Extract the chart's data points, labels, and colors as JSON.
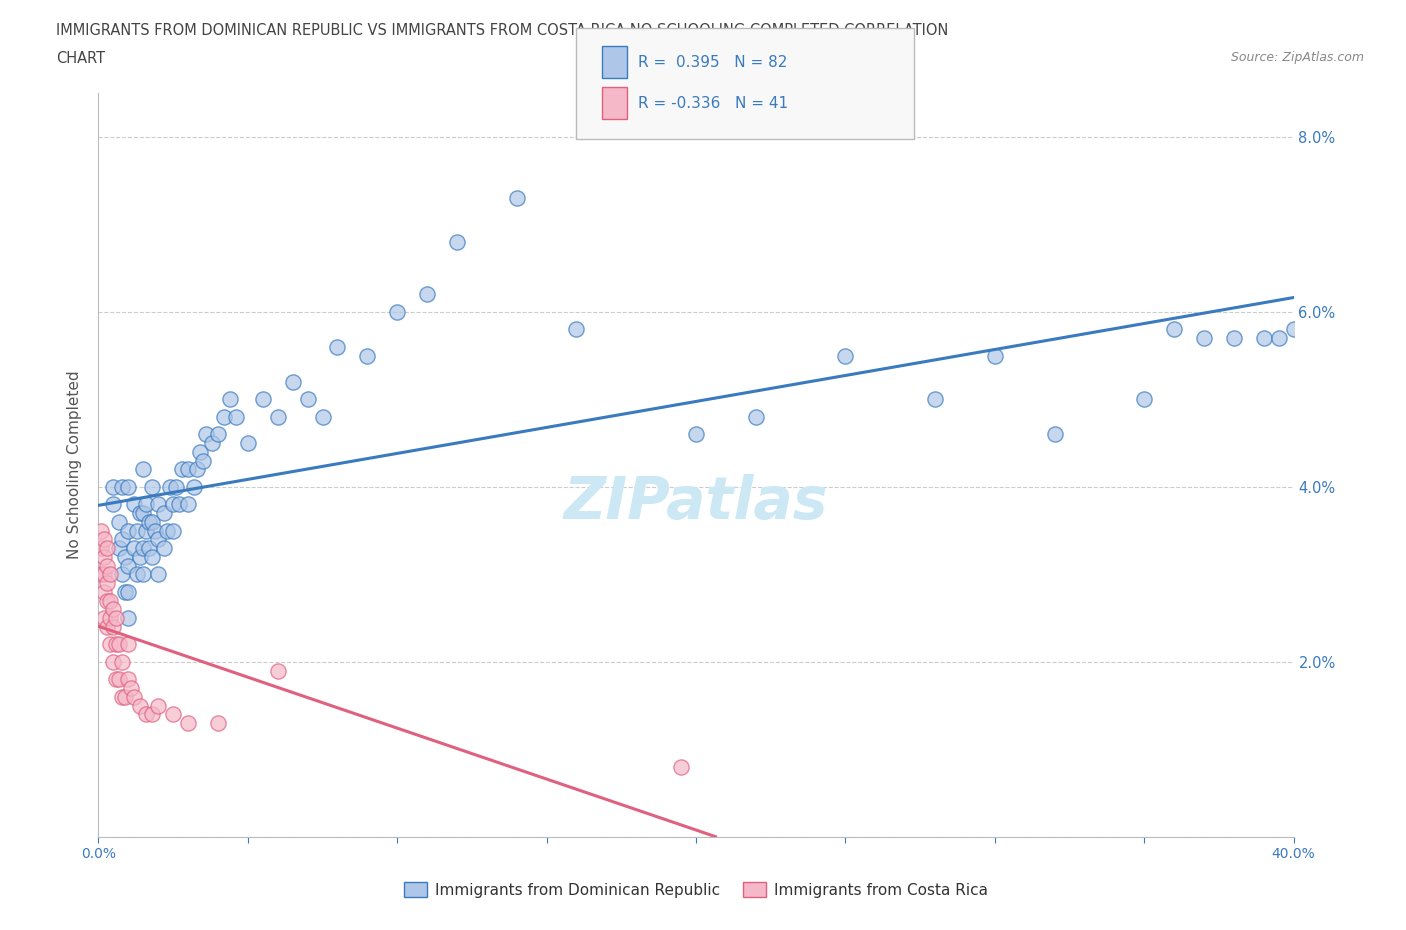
{
  "title_line1": "IMMIGRANTS FROM DOMINICAN REPUBLIC VS IMMIGRANTS FROM COSTA RICA NO SCHOOLING COMPLETED CORRELATION",
  "title_line2": "CHART",
  "source": "Source: ZipAtlas.com",
  "ylabel": "No Schooling Completed",
  "xlabel_dr": "Immigrants from Dominican Republic",
  "xlabel_cr": "Immigrants from Costa Rica",
  "R_dr": 0.395,
  "N_dr": 82,
  "R_cr": -0.336,
  "N_cr": 41,
  "color_dr": "#aec6e8",
  "color_cr": "#f5b8c8",
  "line_color_dr": "#3a7abf",
  "line_color_cr": "#e06080",
  "xmin": 0.0,
  "xmax": 0.4,
  "ymin": 0.0,
  "ymax": 0.085,
  "yticks": [
    0.0,
    0.02,
    0.04,
    0.06,
    0.08
  ],
  "xticks": [
    0.0,
    0.05,
    0.1,
    0.15,
    0.2,
    0.25,
    0.3,
    0.35,
    0.4
  ],
  "dr_x": [
    0.005,
    0.005,
    0.007,
    0.007,
    0.008,
    0.008,
    0.008,
    0.009,
    0.009,
    0.01,
    0.01,
    0.01,
    0.01,
    0.01,
    0.012,
    0.012,
    0.013,
    0.013,
    0.014,
    0.014,
    0.015,
    0.015,
    0.015,
    0.015,
    0.016,
    0.016,
    0.017,
    0.017,
    0.018,
    0.018,
    0.018,
    0.019,
    0.02,
    0.02,
    0.02,
    0.022,
    0.022,
    0.023,
    0.024,
    0.025,
    0.025,
    0.026,
    0.027,
    0.028,
    0.03,
    0.03,
    0.032,
    0.033,
    0.034,
    0.035,
    0.036,
    0.038,
    0.04,
    0.042,
    0.044,
    0.046,
    0.05,
    0.055,
    0.06,
    0.065,
    0.07,
    0.075,
    0.08,
    0.09,
    0.1,
    0.11,
    0.12,
    0.14,
    0.16,
    0.2,
    0.22,
    0.25,
    0.28,
    0.3,
    0.32,
    0.35,
    0.36,
    0.37,
    0.38,
    0.39,
    0.395,
    0.4
  ],
  "dr_y": [
    0.038,
    0.04,
    0.033,
    0.036,
    0.03,
    0.034,
    0.04,
    0.028,
    0.032,
    0.025,
    0.028,
    0.031,
    0.035,
    0.04,
    0.033,
    0.038,
    0.03,
    0.035,
    0.032,
    0.037,
    0.03,
    0.033,
    0.037,
    0.042,
    0.035,
    0.038,
    0.033,
    0.036,
    0.032,
    0.036,
    0.04,
    0.035,
    0.03,
    0.034,
    0.038,
    0.033,
    0.037,
    0.035,
    0.04,
    0.035,
    0.038,
    0.04,
    0.038,
    0.042,
    0.038,
    0.042,
    0.04,
    0.042,
    0.044,
    0.043,
    0.046,
    0.045,
    0.046,
    0.048,
    0.05,
    0.048,
    0.045,
    0.05,
    0.048,
    0.052,
    0.05,
    0.048,
    0.056,
    0.055,
    0.06,
    0.062,
    0.068,
    0.073,
    0.058,
    0.046,
    0.048,
    0.055,
    0.05,
    0.055,
    0.046,
    0.05,
    0.058,
    0.057,
    0.057,
    0.057,
    0.057,
    0.058
  ],
  "cr_x": [
    0.001,
    0.001,
    0.001,
    0.002,
    0.002,
    0.002,
    0.002,
    0.002,
    0.003,
    0.003,
    0.003,
    0.003,
    0.003,
    0.004,
    0.004,
    0.004,
    0.004,
    0.005,
    0.005,
    0.005,
    0.006,
    0.006,
    0.006,
    0.007,
    0.007,
    0.008,
    0.008,
    0.009,
    0.01,
    0.01,
    0.011,
    0.012,
    0.014,
    0.016,
    0.018,
    0.02,
    0.025,
    0.03,
    0.04,
    0.06,
    0.195
  ],
  "cr_y": [
    0.03,
    0.033,
    0.035,
    0.025,
    0.028,
    0.03,
    0.032,
    0.034,
    0.024,
    0.027,
    0.029,
    0.031,
    0.033,
    0.022,
    0.025,
    0.027,
    0.03,
    0.02,
    0.024,
    0.026,
    0.018,
    0.022,
    0.025,
    0.018,
    0.022,
    0.016,
    0.02,
    0.016,
    0.018,
    0.022,
    0.017,
    0.016,
    0.015,
    0.014,
    0.014,
    0.015,
    0.014,
    0.013,
    0.013,
    0.019,
    0.008
  ],
  "background_color": "#ffffff",
  "grid_color": "#cccccc",
  "watermark_text": "ZIPatlas",
  "watermark_color": "#cce8f5",
  "title_color": "#444444",
  "axis_label_color": "#555555",
  "tick_color": "#3a7abf",
  "legend_facecolor": "#f8f8f8",
  "legend_edgecolor": "#bbbbbb",
  "legend_text_color": "#3a7abf"
}
